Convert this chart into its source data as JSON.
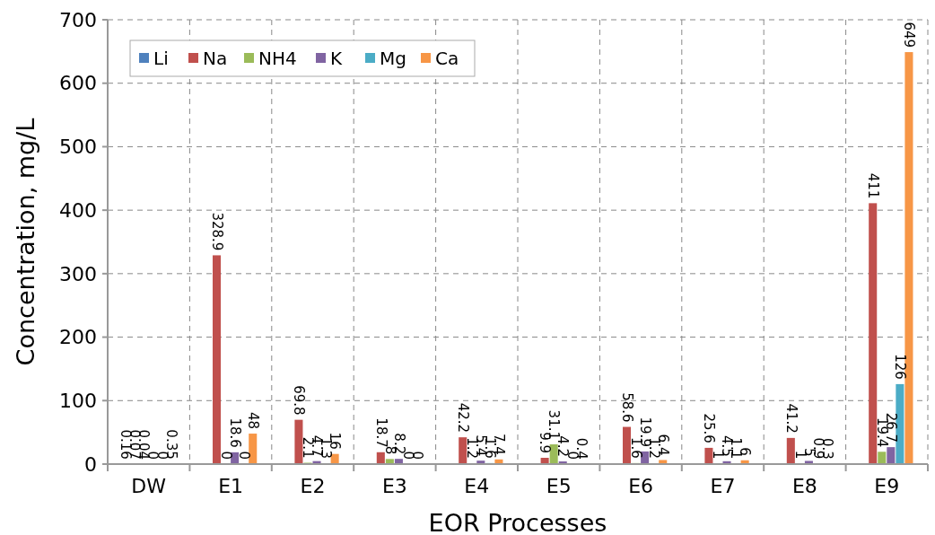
{
  "chart_data": {
    "type": "bar",
    "xlabel": "EOR Processes",
    "ylabel": "Concentration, mg/L",
    "categories": [
      "DW",
      "E1",
      "E2",
      "E3",
      "E4",
      "E5",
      "E6",
      "E7",
      "E8",
      "E9"
    ],
    "series": [
      {
        "name": "Li",
        "color": "#4f81bd",
        "values": [
          0.16,
          null,
          null,
          null,
          null,
          null,
          null,
          null,
          null,
          null
        ]
      },
      {
        "name": "Na",
        "color": "#c0504d",
        "values": [
          0.07,
          328.9,
          69.8,
          18.7,
          42.2,
          9.9,
          58.6,
          25.6,
          41.2,
          411
        ]
      },
      {
        "name": "NH4",
        "color": "#9bbb59",
        "values": [
          0.04,
          0,
          2.1,
          8,
          1.2,
          31.1,
          1.6,
          1,
          1,
          19.4
        ]
      },
      {
        "name": "K",
        "color": "#8064a2",
        "values": [
          0,
          18.6,
          4.7,
          8.2,
          5.4,
          4.2,
          19.9,
          4.5,
          5,
          26.7
        ]
      },
      {
        "name": "Mg",
        "color": "#4bacc6",
        "values": [
          0,
          0,
          1.3,
          0,
          1.6,
          0,
          1.2,
          1.1,
          0.9,
          126
        ]
      },
      {
        "name": "Ca",
        "color": "#f79646",
        "values": [
          0.35,
          48,
          16,
          0,
          7.4,
          0.4,
          6.4,
          6,
          0.3,
          649
        ]
      }
    ],
    "ylim": [
      0,
      700
    ],
    "yticks": [
      0,
      100,
      200,
      300,
      400,
      500,
      600,
      700
    ],
    "grid": true,
    "legend": "top left",
    "data_labels": true
  }
}
